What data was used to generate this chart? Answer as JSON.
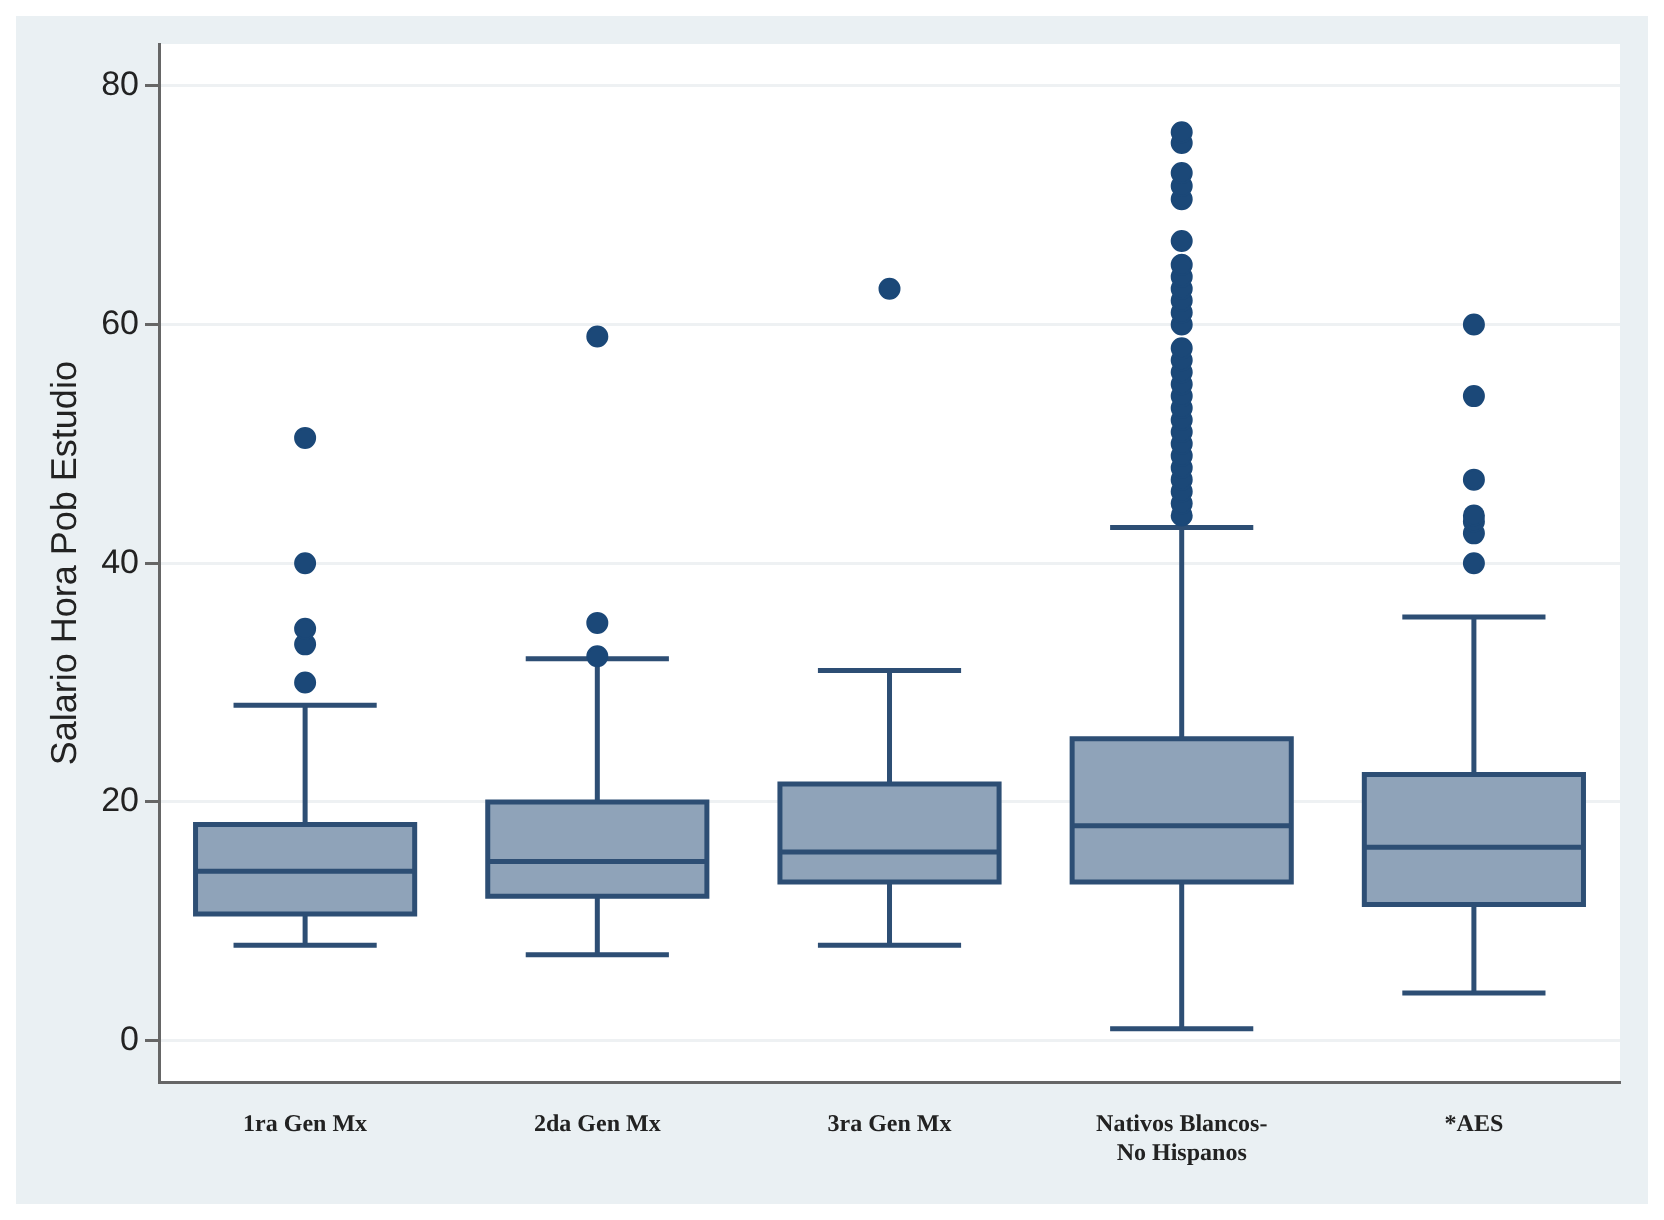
{
  "chart_data": {
    "type": "box",
    "ylabel": "Salario Hora Pob Estudio",
    "categories": [
      "1ra Gen Mx",
      "2da Gen Mx",
      "3ra Gen Mx",
      "Nativos Blancos- No Hispanos",
      "*AES"
    ],
    "series": [
      {
        "color": "#8fa3b9",
        "boxes": [
          {
            "low": 8,
            "q1": 10.6,
            "median": 14.2,
            "q3": 18.1,
            "high": 28.1,
            "outliers": [
              30,
              33.2,
              34.5,
              40,
              50.5
            ]
          },
          {
            "low": 7.2,
            "q1": 12.1,
            "median": 15,
            "q3": 20,
            "high": 32,
            "outliers": [
              32.2,
              35,
              59
            ]
          },
          {
            "low": 8,
            "q1": 13.3,
            "median": 15.8,
            "q3": 21.5,
            "high": 31,
            "outliers": [
              63
            ]
          },
          {
            "low": 1,
            "q1": 13.3,
            "median": 18,
            "q3": 25.3,
            "high": 43,
            "outliers": [
              44,
              45,
              46,
              47,
              48,
              49,
              50,
              51,
              52,
              53,
              54,
              55,
              56,
              57,
              58,
              60,
              61,
              62,
              63,
              64,
              65,
              67,
              70.5,
              71.6,
              72.7,
              75.2,
              76.1
            ]
          },
          {
            "low": 4,
            "q1": 11.4,
            "median": 16.2,
            "q3": 22.3,
            "high": 35.5,
            "outliers": [
              40,
              42.5,
              43.5,
              44,
              47,
              54,
              60
            ]
          }
        ]
      }
    ],
    "ylim": [
      -3.5,
      83.5
    ],
    "yticks": [
      0,
      20,
      40,
      60,
      80
    ],
    "grid": "y",
    "marker": "circle"
  }
}
